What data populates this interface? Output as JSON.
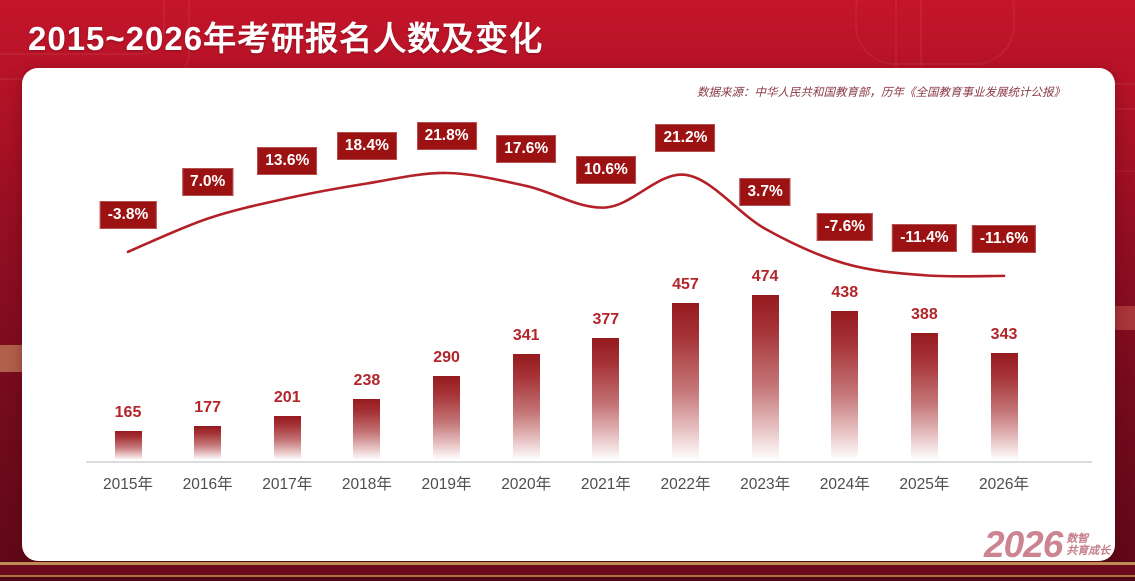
{
  "header": {
    "title": "2015~2026年考研报名人数及变化"
  },
  "card": {
    "source_note": "数据来源：中华人民共和国教育部，历年《全国教育事业发展统计公报》",
    "logo": {
      "year": "2026",
      "tagline_line1": "数智",
      "tagline_line2": "共育成长"
    }
  },
  "colors": {
    "background_red": "#b31226",
    "background_dark": "#5e0818",
    "card": "#ffffff",
    "bar_top": "#951a1e",
    "line": "#b32028",
    "pct_box": "#9c1212",
    "value_text": "#b2252a",
    "x_label_text": "#4d4d4d",
    "gold_stripe": "#c08a53",
    "logo_pink": "#cb8490"
  },
  "chart_data": {
    "type": "bar",
    "title": "2015~2026年考研报名人数及变化",
    "xlabel": "",
    "ylabel": "",
    "categories": [
      "2015年",
      "2016年",
      "2017年",
      "2018年",
      "2019年",
      "2020年",
      "2021年",
      "2022年",
      "2023年",
      "2024年",
      "2025年",
      "2026年"
    ],
    "series": [
      {
        "id": "applicants-bars",
        "type": "bar",
        "values": [
          165,
          177,
          201,
          238,
          290,
          341,
          377,
          457,
          474,
          438,
          388,
          343
        ]
      },
      {
        "id": "growth-rate-line",
        "type": "line",
        "values": [
          -3.8,
          7.0,
          13.6,
          18.4,
          21.8,
          17.6,
          10.6,
          21.2,
          3.7,
          -7.6,
          -11.4,
          -11.6
        ],
        "labels": [
          "-3.8%",
          "7.0%",
          "13.6%",
          "18.4%",
          "21.8%",
          "17.6%",
          "10.6%",
          "21.2%",
          "3.7%",
          "-7.6%",
          "-11.4%",
          "-11.6%"
        ]
      }
    ],
    "layout_hints": {
      "grid": false,
      "legend": "none",
      "bar_axis_baseline_value": 100,
      "line_axis_range": [
        -15,
        25
      ],
      "value_labels_shown": true
    }
  }
}
